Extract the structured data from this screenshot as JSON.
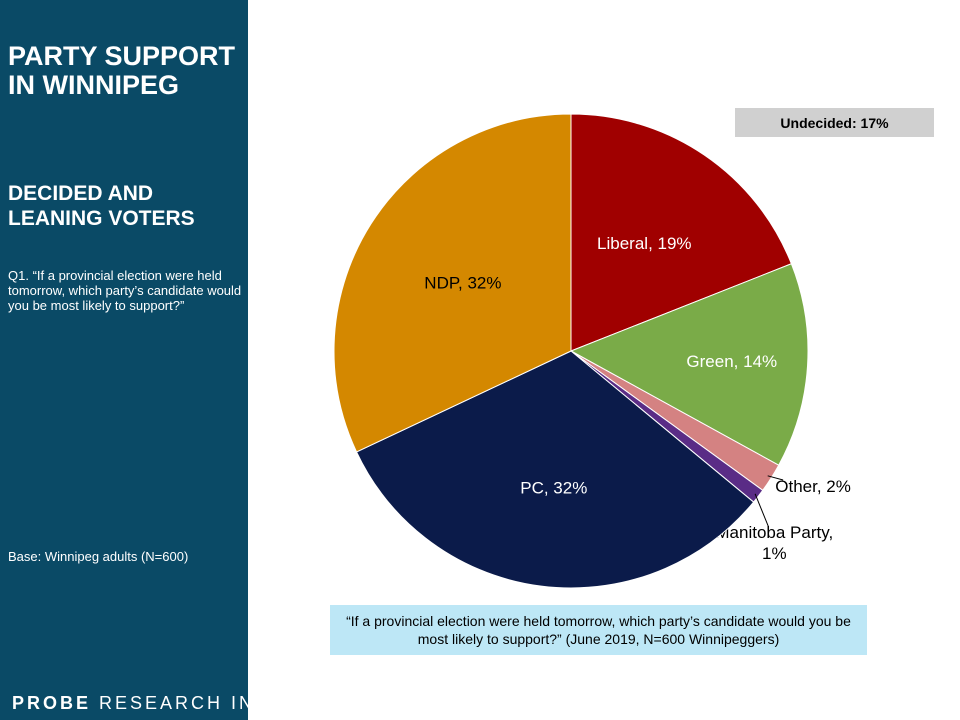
{
  "sidebar": {
    "title": "PARTY SUPPORT\nIN WINNIPEG",
    "subtitle": "DECIDED AND\nLEANING VOTERS",
    "question": "Q1. “If a provincial election were held tomorrow, which party’s candidate would you be most likely to support?”",
    "base": "Base:  Winnipeg adults (N=600)",
    "brand_strong": "PROBE",
    "brand_rest": " RESEARCH INC."
  },
  "undecided": "Undecided: 17%",
  "quote": "“If a provincial election were held tomorrow, which party’s candidate would you be most likely to support?” (June 2019, N=600 Winnipeggers)",
  "colors": {
    "sidebar_bg": "#0a4a66",
    "liberal": "#a00000",
    "green": "#7aab48",
    "other": "#d48282",
    "manitoba_party": "#5a2c86",
    "pc": "#0b1b4a",
    "ndp": "#d48800"
  },
  "chart_data": {
    "type": "pie",
    "slices": [
      {
        "label": "Liberal, 19%",
        "category": "Liberal",
        "value": 19,
        "color": "#a00000"
      },
      {
        "label": "Green, 14%",
        "category": "Green",
        "value": 14,
        "color": "#7aab48"
      },
      {
        "label": "Other, 2%",
        "category": "Other",
        "value": 2,
        "color": "#d48282"
      },
      {
        "label": "Manitoba Party,\n1%",
        "category": "Manitoba Party",
        "value": 1,
        "color": "#5a2c86"
      },
      {
        "label": "PC, 32%",
        "category": "PC",
        "value": 32,
        "color": "#0b1b4a"
      },
      {
        "label": "NDP, 32%",
        "category": "NDP",
        "value": 32,
        "color": "#d48800"
      }
    ]
  }
}
